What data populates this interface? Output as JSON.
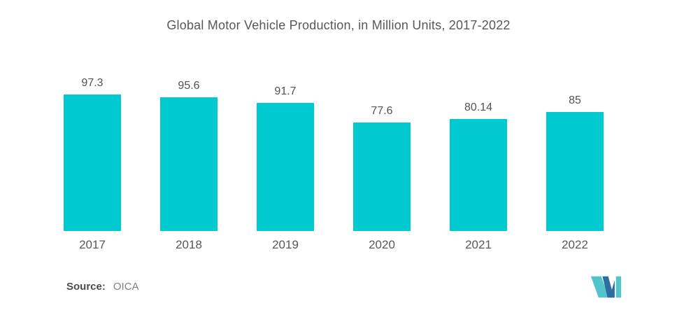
{
  "chart_data": {
    "type": "bar",
    "title": "Global Motor Vehicle Production, in Million Units, 2017-2022",
    "categories": [
      "2017",
      "2018",
      "2019",
      "2020",
      "2021",
      "2022"
    ],
    "values": [
      97.3,
      95.6,
      91.7,
      77.6,
      80.14,
      85
    ],
    "value_labels": [
      "97.3",
      "95.6",
      "91.7",
      "77.6",
      "80.14",
      "85"
    ],
    "xlabel": "",
    "ylabel": "",
    "ylim": [
      0,
      117
    ],
    "grid": false,
    "legend": false,
    "bar_color": "#00C9D0",
    "label_color": "#525254"
  },
  "footer": {
    "source_label": "Source:",
    "source_value": "OICA"
  },
  "logo": {
    "name": "mordor-intelligence-logo",
    "teal": "#54C4CB",
    "blue": "#2F6C9F"
  }
}
